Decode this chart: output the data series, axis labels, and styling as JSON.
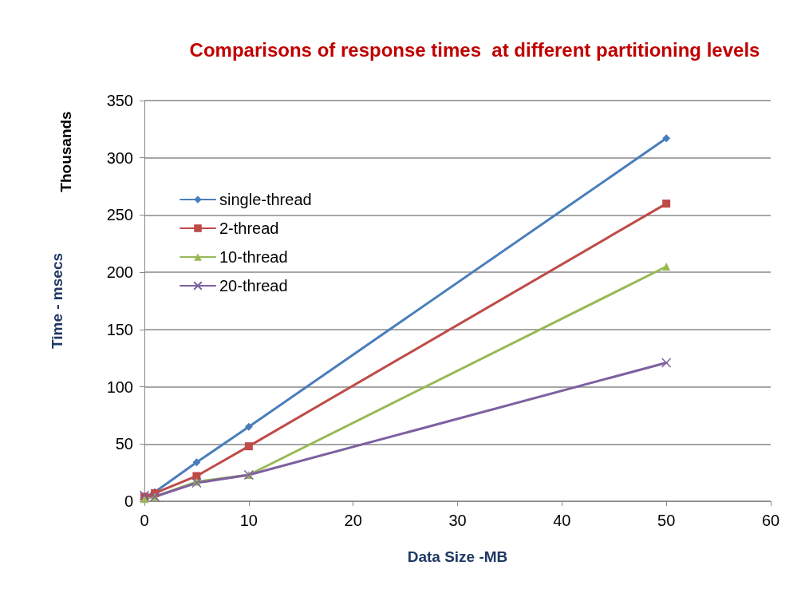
{
  "chart_data": {
    "type": "line",
    "title": "Comparisons of response times  at different partitioning levels",
    "xlabel": "Data Size -MB",
    "ylabel": "Time - msecs",
    "annotations": [
      "Thousands"
    ],
    "x": [
      0,
      1,
      5,
      10,
      50
    ],
    "series": [
      {
        "name": "single-thread",
        "color": "#4a7ebb",
        "marker": "diamond",
        "values": [
          3,
          8,
          34,
          65,
          317
        ]
      },
      {
        "name": "2-thread",
        "color": "#be4b48",
        "marker": "square",
        "values": [
          4,
          7,
          22,
          48,
          260
        ]
      },
      {
        "name": "10-thread",
        "color": "#98b954",
        "marker": "triangle",
        "values": [
          2,
          4,
          17,
          23,
          205
        ]
      },
      {
        "name": "20-thread",
        "color": "#7d60a0",
        "marker": "cross",
        "values": [
          5,
          4,
          16,
          23,
          121
        ]
      }
    ],
    "xlim": [
      0,
      60
    ],
    "xticks": [
      0,
      10,
      20,
      30,
      40,
      50,
      60
    ],
    "ylim": [
      0,
      350
    ],
    "yticks": [
      0,
      50,
      100,
      150,
      200,
      250,
      300,
      350
    ],
    "grid": "y",
    "legend": "top left",
    "line_style": "solid"
  }
}
